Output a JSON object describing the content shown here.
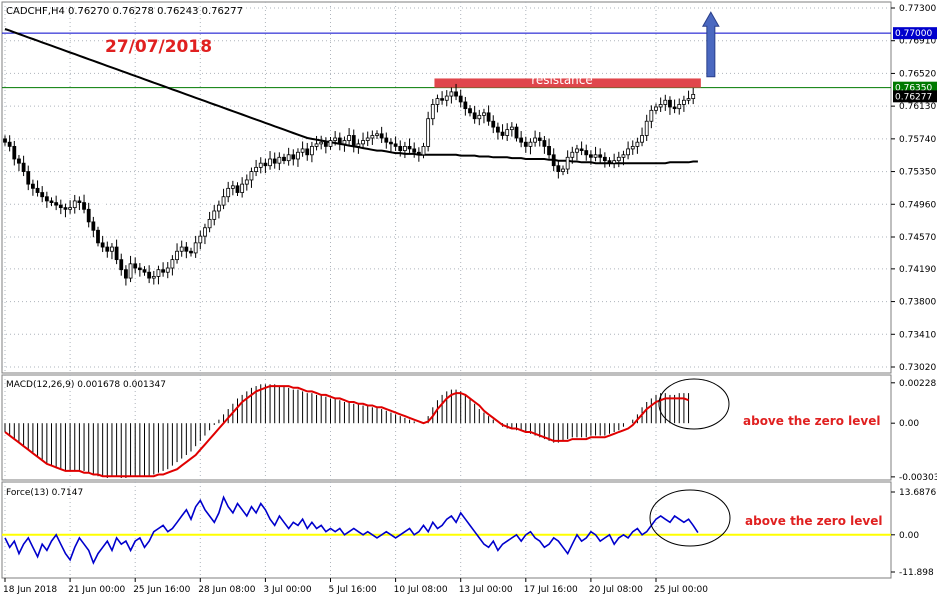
{
  "symbol_header": "CADCHF,H4  0.76270 0.76278 0.76243 0.76277",
  "date_annotation": "27/07/2018",
  "resistance_label": "resistance",
  "macd_label": "MACD(12,26,9) 0.001678 0.001347",
  "force_label": "Force(13) 0.7147",
  "macd_note": "above the zero level",
  "force_note": "above the zero level",
  "colors": {
    "grid": "#aeb4bc",
    "candle": "#000000",
    "ma_long": "#000000",
    "ma_short": "#ffffff",
    "macd_signal": "#e00000",
    "force_line": "#0000cc",
    "zero_line": "#ffff00",
    "level_blue": "#0000cc",
    "level_green": "#007a00",
    "resistance_box": "#e0474c",
    "arrow": "#4a68c0",
    "annotation_text": "#e02020"
  },
  "chart_data": [
    {
      "type": "candlestick",
      "title": "CADCHF,H4",
      "x_ticks": [
        "18 Jun 2018",
        "21 Jun 00:00",
        "25 Jun 16:00",
        "28 Jun 08:00",
        "3 Jul 00:00",
        "5 Jul 16:00",
        "10 Jul 08:00",
        "13 Jul 00:00",
        "17 Jul 16:00",
        "20 Jul 08:00",
        "25 Jul 00:00"
      ],
      "y_ticks": [
        "0.77300",
        "0.76910",
        "0.76520",
        "0.76130",
        "0.75740",
        "0.75350",
        "0.74960",
        "0.74570",
        "0.74190",
        "0.73800",
        "0.73410",
        "0.73020"
      ],
      "ylim": [
        0.7302,
        0.773
      ],
      "grid": true,
      "levels": [
        {
          "name": "blue",
          "value": 0.77,
          "label": "0.77000"
        },
        {
          "name": "green",
          "value": 0.7635,
          "label": "0.76350"
        },
        {
          "name": "last",
          "value": 0.76277,
          "label": "0.76277"
        }
      ],
      "resistance_zone": [
        0.7635,
        0.7646
      ],
      "close": [
        0.757,
        0.7565,
        0.755,
        0.7545,
        0.7535,
        0.752,
        0.7515,
        0.751,
        0.7505,
        0.75,
        0.7498,
        0.7495,
        0.7492,
        0.749,
        0.7492,
        0.75,
        0.7498,
        0.749,
        0.7475,
        0.7465,
        0.745,
        0.7445,
        0.744,
        0.7445,
        0.743,
        0.7418,
        0.7408,
        0.7425,
        0.742,
        0.7418,
        0.7415,
        0.7408,
        0.741,
        0.7418,
        0.7415,
        0.742,
        0.743,
        0.744,
        0.7445,
        0.744,
        0.7438,
        0.745,
        0.7458,
        0.7468,
        0.7478,
        0.7488,
        0.7495,
        0.7505,
        0.7515,
        0.7518,
        0.751,
        0.752,
        0.7525,
        0.7535,
        0.754,
        0.7545,
        0.7542,
        0.755,
        0.7545,
        0.7552,
        0.7548,
        0.7555,
        0.755,
        0.7558,
        0.7562,
        0.7555,
        0.7565,
        0.7568,
        0.757,
        0.7565,
        0.7572,
        0.7575,
        0.7568,
        0.7572,
        0.7578,
        0.7565,
        0.7568,
        0.7572,
        0.7575,
        0.7578,
        0.758,
        0.7575,
        0.757,
        0.7568,
        0.7565,
        0.756,
        0.7565,
        0.7562,
        0.7558,
        0.7555,
        0.7565,
        0.7598,
        0.7615,
        0.7622,
        0.762,
        0.7625,
        0.763,
        0.7625,
        0.7618,
        0.761,
        0.7605,
        0.7598,
        0.7602,
        0.7605,
        0.7595,
        0.7588,
        0.7582,
        0.7578,
        0.7585,
        0.7588,
        0.7575,
        0.757,
        0.7565,
        0.757,
        0.7575,
        0.7572,
        0.7565,
        0.7555,
        0.7542,
        0.7535,
        0.7538,
        0.7552,
        0.7558,
        0.7562,
        0.756,
        0.7555,
        0.7552,
        0.7555,
        0.7552,
        0.7548,
        0.7545,
        0.7548,
        0.7552,
        0.7555,
        0.7562,
        0.7565,
        0.757,
        0.7578,
        0.7595,
        0.7608,
        0.7612,
        0.7615,
        0.762,
        0.7612,
        0.761,
        0.7615,
        0.762,
        0.7622,
        0.7627
      ],
      "series": [
        {
          "name": "long",
          "values": [
            0.7705,
            0.7703,
            0.7701,
            0.7699,
            0.7697,
            0.7695,
            0.7693,
            0.7691,
            0.7689,
            0.7687,
            0.7685,
            0.7683,
            0.7681,
            0.7679,
            0.7677,
            0.7675,
            0.7673,
            0.7671,
            0.7669,
            0.7667,
            0.7665,
            0.7663,
            0.7661,
            0.7659,
            0.7657,
            0.7655,
            0.7653,
            0.7651,
            0.7649,
            0.7647,
            0.7645,
            0.7643,
            0.7641,
            0.7639,
            0.7637,
            0.7635,
            0.7633,
            0.7631,
            0.7629,
            0.7627,
            0.7625,
            0.7623,
            0.7621,
            0.7619,
            0.7617,
            0.7615,
            0.7613,
            0.7611,
            0.7609,
            0.7607,
            0.7605,
            0.7603,
            0.7601,
            0.7599,
            0.7597,
            0.7595,
            0.7593,
            0.7591,
            0.7589,
            0.7587,
            0.7585,
            0.7583,
            0.7581,
            0.7579,
            0.7577,
            0.7575,
            0.7574,
            0.7573,
            0.7572,
            0.7571,
            0.757,
            0.7569,
            0.7568,
            0.7567,
            0.7566,
            0.7565,
            0.7564,
            0.7563,
            0.7562,
            0.7561,
            0.756,
            0.756,
            0.7559,
            0.7558,
            0.7557,
            0.7557,
            0.7556,
            0.7556,
            0.7556,
            0.7555,
            0.7555,
            0.7555,
            0.7555,
            0.7555,
            0.7555,
            0.7555,
            0.7555,
            0.7555,
            0.7554,
            0.7554,
            0.7554,
            0.7554,
            0.7553,
            0.7553,
            0.7553,
            0.7552,
            0.7552,
            0.7552,
            0.7552,
            0.7551,
            0.7551,
            0.7551,
            0.755,
            0.755,
            0.755,
            0.755,
            0.755,
            0.7549,
            0.7549,
            0.7548,
            0.7548,
            0.7548,
            0.7547,
            0.7547,
            0.7546,
            0.7546,
            0.7546,
            0.7545,
            0.7545,
            0.7545,
            0.7545,
            0.7545,
            0.7545,
            0.7545,
            0.7545,
            0.7545,
            0.7545,
            0.7545,
            0.7545,
            0.7545,
            0.7545,
            0.7545,
            0.7545,
            0.7546,
            0.7546,
            0.7546,
            0.7546,
            0.7546,
            0.7547,
            0.7547
          ]
        },
        {
          "name": "short",
          "values": [
            0.7595,
            0.7592,
            0.7589,
            0.7584,
            0.758,
            0.7575,
            0.757,
            0.7565,
            0.756,
            0.7555,
            0.755,
            0.7545,
            0.754,
            0.7535,
            0.753,
            0.7525,
            0.752,
            0.7515,
            0.751,
            0.7505,
            0.75,
            0.7495,
            0.749,
            0.7485,
            0.748,
            0.7475,
            0.747,
            0.7465,
            0.746,
            0.7455,
            0.745,
            0.7447,
            0.7443,
            0.744,
            0.7436,
            0.7433,
            0.7429,
            0.7426,
            0.7422,
            0.7419,
            0.7415,
            0.7418,
            0.7422,
            0.743,
            0.744,
            0.745,
            0.746,
            0.747,
            0.7478,
            0.7486,
            0.7493,
            0.7498,
            0.7502,
            0.7506,
            0.751,
            0.7515,
            0.7518,
            0.7522,
            0.7526,
            0.753,
            0.7534,
            0.7537,
            0.754,
            0.7543,
            0.7546,
            0.7549,
            0.7551,
            0.7553,
            0.7555,
            0.7557,
            0.7559,
            0.756,
            0.7561,
            0.7562,
            0.7563,
            0.7564,
            0.7565,
            0.7566,
            0.7567,
            0.7568,
            0.7569,
            0.7569,
            0.7569,
            0.7569,
            0.7569,
            0.7569,
            0.7568,
            0.7567,
            0.7566,
            0.7565,
            0.7566,
            0.7572,
            0.758,
            0.7588,
            0.7594,
            0.7598,
            0.7601,
            0.7603,
            0.7605,
            0.7605,
            0.7605,
            0.7604,
            0.7603,
            0.7602,
            0.7601,
            0.76,
            0.7598,
            0.7596,
            0.7594,
            0.7592,
            0.759,
            0.7588,
            0.7586,
            0.7584,
            0.7582,
            0.758,
            0.7578,
            0.7575,
            0.7572,
            0.7569,
            0.7566,
            0.7564,
            0.7563,
            0.7562,
            0.7561,
            0.756,
            0.7559,
            0.7558,
            0.7557,
            0.7556,
            0.7555,
            0.7555,
            0.7555,
            0.7556,
            0.7557,
            0.7559,
            0.7562,
            0.7566,
            0.757,
            0.7574,
            0.7578,
            0.7582,
            0.7586,
            0.759,
            0.7594,
            0.7598,
            0.7603,
            0.7608
          ]
        }
      ]
    },
    {
      "type": "bar",
      "title": "MACD(12,26,9) 0.001678 0.001347",
      "y_ticks": [
        "0.002285",
        "0.00",
        "-0.003036"
      ],
      "ylim": [
        -0.0031,
        0.0025
      ],
      "values": [
        -0.0005,
        -0.0007,
        -0.0009,
        -0.0011,
        -0.0013,
        -0.0015,
        -0.0017,
        -0.0019,
        -0.0021,
        -0.0023,
        -0.0024,
        -0.0025,
        -0.0026,
        -0.0027,
        -0.0027,
        -0.0027,
        -0.0027,
        -0.0027,
        -0.0028,
        -0.0029,
        -0.003,
        -0.003,
        -0.0031,
        -0.003,
        -0.003,
        -0.0031,
        -0.0031,
        -0.003,
        -0.003,
        -0.003,
        -0.003,
        -0.003,
        -0.0029,
        -0.0028,
        -0.0027,
        -0.0026,
        -0.0024,
        -0.0022,
        -0.002,
        -0.0018,
        -0.0016,
        -0.0013,
        -0.001,
        -0.0007,
        -0.0004,
        -0.0001,
        0.0002,
        0.0005,
        0.0008,
        0.0011,
        0.0014,
        0.0016,
        0.0018,
        0.002,
        0.0021,
        0.0022,
        0.0022,
        0.0022,
        0.0022,
        0.0021,
        0.0021,
        0.002,
        0.0019,
        0.0019,
        0.0018,
        0.0017,
        0.0017,
        0.0016,
        0.0016,
        0.0015,
        0.0014,
        0.0014,
        0.0013,
        0.0012,
        0.0012,
        0.0011,
        0.0011,
        0.001,
        0.001,
        0.0009,
        0.0009,
        0.0008,
        0.0007,
        0.0006,
        0.0005,
        0.0004,
        0.0003,
        0.0002,
        0.0001,
        0.0,
        0.0,
        0.0004,
        0.0009,
        0.0013,
        0.0016,
        0.0018,
        0.0019,
        0.0019,
        0.0018,
        0.0016,
        0.0014,
        0.0011,
        0.0008,
        0.0006,
        0.0004,
        0.0002,
        0.0,
        -0.0002,
        -0.0003,
        -0.0003,
        -0.0004,
        -0.0004,
        -0.0005,
        -0.0006,
        -0.0007,
        -0.0008,
        -0.0009,
        -0.001,
        -0.0011,
        -0.0011,
        -0.001,
        -0.0009,
        -0.0008,
        -0.0008,
        -0.0008,
        -0.0008,
        -0.0007,
        -0.0007,
        -0.0007,
        -0.0007,
        -0.0006,
        -0.0005,
        -0.0004,
        -0.0002,
        0.0,
        0.0002,
        0.0005,
        0.0009,
        0.0012,
        0.0014,
        0.0016,
        0.0017,
        0.0017,
        0.0016,
        0.0016,
        0.0017,
        0.0017,
        0.0017
      ],
      "series": [
        {
          "name": "signal",
          "values": [
            -0.0005,
            -0.0007,
            -0.0009,
            -0.0011,
            -0.0013,
            -0.0015,
            -0.0017,
            -0.0019,
            -0.0021,
            -0.0023,
            -0.0024,
            -0.0025,
            -0.0026,
            -0.0027,
            -0.0027,
            -0.0027,
            -0.0027,
            -0.0028,
            -0.0028,
            -0.0029,
            -0.0029,
            -0.003,
            -0.003,
            -0.003,
            -0.003,
            -0.003,
            -0.003,
            -0.003,
            -0.003,
            -0.003,
            -0.003,
            -0.003,
            -0.003,
            -0.0029,
            -0.0029,
            -0.0028,
            -0.0027,
            -0.0026,
            -0.0024,
            -0.0022,
            -0.002,
            -0.0018,
            -0.0015,
            -0.0012,
            -0.0009,
            -0.0006,
            -0.0003,
            0.0,
            0.0003,
            0.0006,
            0.0009,
            0.0012,
            0.0014,
            0.0016,
            0.0018,
            0.0019,
            0.002,
            0.0021,
            0.0021,
            0.0021,
            0.0021,
            0.0021,
            0.002,
            0.002,
            0.0019,
            0.0018,
            0.0018,
            0.0017,
            0.0016,
            0.0016,
            0.0015,
            0.0014,
            0.0014,
            0.0013,
            0.0012,
            0.0012,
            0.0011,
            0.0011,
            0.001,
            0.001,
            0.0009,
            0.0009,
            0.0008,
            0.0007,
            0.0006,
            0.0005,
            0.0004,
            0.0003,
            0.0002,
            0.0001,
            0.0,
            0.0001,
            0.0004,
            0.0008,
            0.0011,
            0.0014,
            0.0016,
            0.0017,
            0.0017,
            0.0016,
            0.0014,
            0.0012,
            0.001,
            0.0007,
            0.0005,
            0.0003,
            0.0001,
            -0.0001,
            -0.0002,
            -0.0003,
            -0.0003,
            -0.0004,
            -0.0005,
            -0.0005,
            -0.0006,
            -0.0007,
            -0.0008,
            -0.0009,
            -0.001,
            -0.001,
            -0.001,
            -0.001,
            -0.0009,
            -0.0009,
            -0.0009,
            -0.0009,
            -0.0008,
            -0.0008,
            -0.0008,
            -0.0008,
            -0.0007,
            -0.0006,
            -0.0005,
            -0.0004,
            -0.0003,
            -0.0001,
            0.0002,
            0.0005,
            0.0008,
            0.001,
            0.0012,
            0.0013,
            0.0014,
            0.0014,
            0.0014,
            0.0014,
            0.0014,
            0.0013
          ]
        }
      ]
    },
    {
      "type": "line",
      "title": "Force(13) 0.7147",
      "y_ticks": [
        "13.6876",
        "0.00",
        "-11.898"
      ],
      "ylim": [
        -11.898,
        13.6876
      ],
      "series": [
        {
          "name": "force",
          "values": [
            -1.0,
            -4.0,
            -2.0,
            -6.0,
            -3.0,
            -1.0,
            -4.0,
            -7.0,
            -3.0,
            -5.0,
            -2.0,
            0.0,
            -3.0,
            -6.0,
            -8.0,
            -4.0,
            -1.0,
            -3.0,
            -5.0,
            -9.0,
            -6.0,
            -4.0,
            -2.0,
            -5.0,
            -1.0,
            -3.0,
            -2.0,
            -5.0,
            -2.0,
            -1.0,
            -4.0,
            -2.0,
            1.0,
            2.0,
            3.0,
            1.0,
            2.0,
            4.0,
            6.0,
            8.0,
            5.0,
            9.0,
            11.0,
            8.0,
            6.0,
            4.0,
            7.0,
            12.0,
            9.0,
            7.0,
            10.0,
            8.0,
            6.0,
            9.0,
            7.0,
            10.0,
            8.0,
            5.0,
            3.0,
            6.0,
            4.0,
            2.0,
            4.0,
            3.0,
            5.0,
            2.0,
            4.0,
            2.0,
            3.0,
            1.0,
            2.0,
            1.0,
            2.0,
            0.0,
            1.0,
            2.0,
            1.0,
            0.0,
            1.0,
            0.0,
            -1.0,
            0.0,
            1.0,
            0.0,
            -1.0,
            0.0,
            1.0,
            2.0,
            0.0,
            1.0,
            3.0,
            1.0,
            4.0,
            2.0,
            3.0,
            5.0,
            6.0,
            4.0,
            7.0,
            5.0,
            3.0,
            1.0,
            -1.0,
            -3.0,
            -4.0,
            -2.0,
            -5.0,
            -3.0,
            -2.0,
            -1.0,
            0.0,
            -2.0,
            0.0,
            1.0,
            -1.0,
            -2.0,
            -4.0,
            -3.0,
            -1.0,
            -2.0,
            -4.0,
            -6.0,
            -3.0,
            0.0,
            -2.0,
            -1.0,
            1.0,
            0.0,
            -2.0,
            -1.0,
            0.0,
            -3.0,
            -1.0,
            0.0,
            -1.0,
            1.0,
            2.0,
            0.0,
            1.0,
            3.0,
            5.0,
            6.0,
            5.0,
            4.0,
            6.0,
            5.0,
            4.0,
            5.0,
            3.0,
            0.7
          ]
        }
      ]
    }
  ]
}
